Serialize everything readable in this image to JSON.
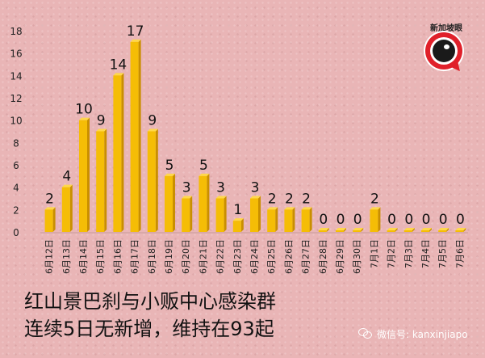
{
  "chart_data": {
    "type": "bar",
    "categories": [
      "6月12日",
      "6月13日",
      "6月14日",
      "6月15日",
      "6月16日",
      "6月17日",
      "6月18日",
      "6月19日",
      "6月20日",
      "6月21日",
      "6月22日",
      "6月23日",
      "6月24日",
      "6月25日",
      "6月26日",
      "6月27日",
      "6月28日",
      "6月29日",
      "6月30日",
      "7月1日",
      "7月2日",
      "7月3日",
      "7月4日",
      "7月5日",
      "7月6日"
    ],
    "values": [
      2,
      4,
      10,
      9,
      14,
      17,
      9,
      5,
      3,
      5,
      3,
      1,
      3,
      2,
      2,
      2,
      0,
      0,
      0,
      2,
      0,
      0,
      0,
      0,
      0
    ],
    "ylim": [
      0,
      18
    ],
    "yticks": [
      0,
      2,
      4,
      6,
      8,
      10,
      12,
      14,
      16,
      18
    ],
    "title": "",
    "xlabel": "",
    "ylabel": "",
    "grid": false,
    "bar_color": "#f5bd06"
  },
  "caption": {
    "line1": "红山景巴刹与小贩中心感染群",
    "line2": "连续5日无新增，维持在93起"
  },
  "logo": {
    "text": "新加坡眼",
    "icon": "eye-logo-icon"
  },
  "watermark": {
    "icon": "wechat-icon",
    "text": "微信号: kanxinjiapo"
  }
}
